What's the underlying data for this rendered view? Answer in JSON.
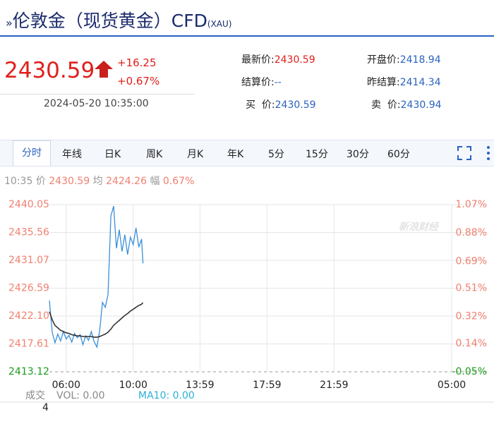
{
  "header": {
    "title": "伦敦金（现货黄金）CFD",
    "code": "(XAU)"
  },
  "quote": {
    "price": "2430.59",
    "change": "+16.25",
    "change_pct": "+0.67%",
    "time": "2024-05-20 10:35:00",
    "fields": [
      [
        "最新价:",
        "2430.59"
      ],
      [
        "开盘价:",
        "2418.94"
      ],
      [
        "结算价:",
        "--"
      ],
      [
        "昨结算:",
        "2414.34"
      ],
      [
        "买  价:",
        "2430.59"
      ],
      [
        "卖  价:",
        "2430.94"
      ]
    ]
  },
  "tabs": [
    "分时",
    "年线",
    "日K",
    "周K",
    "月K",
    "年K",
    "5分",
    "15分",
    "30分",
    "60分"
  ],
  "info": {
    "time": "10:35",
    "price_label": "价",
    "price": "2430.59",
    "avg_label": "均",
    "avg": "2424.26",
    "range_label": "幅",
    "range": "0.67%"
  },
  "watermark": "新浪财经",
  "volume": {
    "label": "成交",
    "unit": "4",
    "vol": "VOL: 0.00",
    "ma10": "MA10: 0.00"
  },
  "chart_data": {
    "type": "line",
    "x": [
      "05:00",
      "05:10",
      "05:20",
      "05:30",
      "05:40",
      "05:50",
      "06:00",
      "06:10",
      "06:20",
      "06:30",
      "06:40",
      "06:50",
      "07:00",
      "07:10",
      "07:20",
      "07:30",
      "07:40",
      "07:50",
      "08:00",
      "08:10",
      "08:20",
      "08:30",
      "08:40",
      "08:50",
      "09:00",
      "09:10",
      "09:20",
      "09:30",
      "09:40",
      "09:50",
      "10:00",
      "10:10",
      "10:20",
      "10:30",
      "10:35"
    ],
    "series": [
      {
        "name": "价",
        "color": "#3a8fd8",
        "values": [
          2424.6,
          2419.5,
          2417.8,
          2419.2,
          2418.1,
          2419.6,
          2418.4,
          2419.0,
          2417.9,
          2419.3,
          2418.6,
          2419.1,
          2417.5,
          2418.9,
          2418.2,
          2419.6,
          2418.0,
          2417.1,
          2419.8,
          2424.3,
          2423.5,
          2425.6,
          2438.2,
          2439.8,
          2433.0,
          2436.0,
          2432.5,
          2435.2,
          2432.0,
          2434.8,
          2433.6,
          2436.3,
          2433.2,
          2434.5,
          2430.59
        ]
      },
      {
        "name": "均",
        "color": "#333333",
        "values": [
          2422.8,
          2421.5,
          2420.6,
          2420.2,
          2419.8,
          2419.6,
          2419.4,
          2419.3,
          2419.1,
          2419.0,
          2418.9,
          2418.9,
          2418.8,
          2418.8,
          2418.8,
          2418.8,
          2418.7,
          2418.7,
          2418.8,
          2419.0,
          2419.2,
          2419.5,
          2420.0,
          2420.6,
          2421.0,
          2421.4,
          2421.8,
          2422.2,
          2422.5,
          2422.9,
          2423.2,
          2423.5,
          2423.8,
          2424.0,
          2424.26
        ]
      }
    ],
    "ylim": [
      2413.12,
      2440.05
    ],
    "yticks": [
      2413.12,
      2417.61,
      {
        "value": 2422.1,
        "label": "2422.10"
      },
      2426.59,
      2431.07,
      2435.56,
      2440.05
    ],
    "y2lim": [
      -0.05,
      1.07
    ],
    "y2ticks": [
      {
        "value": -0.05,
        "label": "-0.05%"
      },
      {
        "value": 0.14,
        "label": "0.14%"
      },
      {
        "value": 0.32,
        "label": "0.32%"
      },
      {
        "value": 0.51,
        "label": "0.51%"
      },
      {
        "value": 0.69,
        "label": "0.69%"
      },
      {
        "value": 0.88,
        "label": "0.88%"
      },
      {
        "value": 1.07,
        "label": "1.07%"
      }
    ],
    "xticks": [
      "06:00",
      "10:00",
      "13:59",
      "17:59",
      "21:59",
      "05:00"
    ],
    "grid": true
  }
}
